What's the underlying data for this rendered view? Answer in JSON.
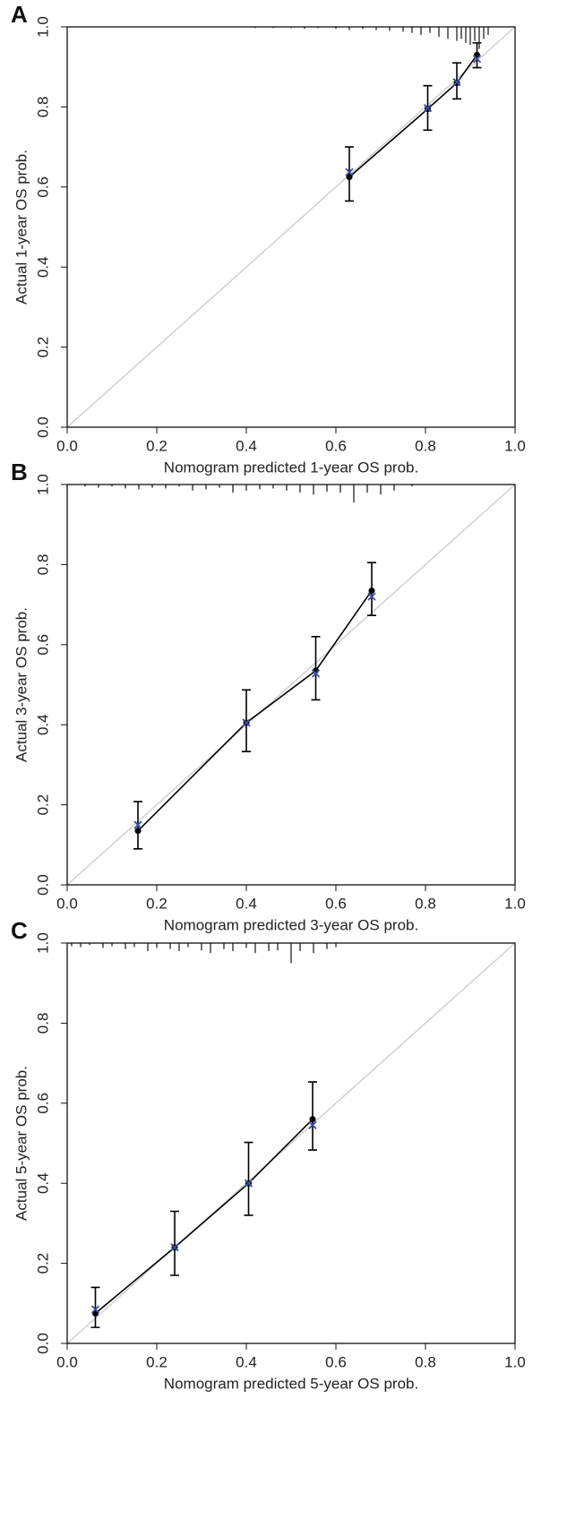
{
  "chart_data": [
    {
      "type": "calibration",
      "panel": "A",
      "x_label": "Nomogram  predicted 1-year OS  prob.",
      "y_label": "Actual 1-year OS  prob.",
      "xlim": [
        0,
        1
      ],
      "ylim": [
        0,
        1
      ],
      "xticks": [
        {
          "value": 0,
          "label": "0.0"
        },
        0.2,
        0.4,
        0.6,
        0.8,
        {
          "value": 1,
          "label": "1.0"
        }
      ],
      "yticks": [
        {
          "value": 0,
          "label": "0.0"
        },
        0.2,
        0.4,
        0.6,
        0.8,
        {
          "value": 1,
          "label": "1.0"
        }
      ],
      "observed": {
        "color": "#000000",
        "x": [
          0.63,
          0.805,
          0.87,
          0.915
        ],
        "values": [
          0.625,
          0.795,
          0.86,
          0.93
        ],
        "lower": [
          0.565,
          0.742,
          0.82,
          0.898
        ],
        "upper": [
          0.7,
          0.853,
          0.91,
          0.96
        ]
      },
      "corrected": {
        "color": "#3a4fa0",
        "x": [
          0.63,
          0.805,
          0.87,
          0.915
        ],
        "values": [
          0.637,
          0.797,
          0.862,
          0.92
        ]
      },
      "rug": {
        "x": [
          0.42,
          0.46,
          0.5,
          0.53,
          0.56,
          0.6,
          0.63,
          0.66,
          0.69,
          0.72,
          0.75,
          0.77,
          0.79,
          0.81,
          0.83,
          0.85,
          0.87,
          0.88,
          0.89,
          0.9,
          0.91,
          0.92,
          0.93,
          0.94
        ],
        "lengths": [
          0.003,
          0.003,
          0.003,
          0.005,
          0.003,
          0.005,
          0.008,
          0.005,
          0.008,
          0.01,
          0.012,
          0.015,
          0.02,
          0.015,
          0.025,
          0.03,
          0.035,
          0.03,
          0.04,
          0.045,
          0.035,
          0.055,
          0.03,
          0.02
        ]
      }
    },
    {
      "type": "calibration",
      "panel": "B",
      "x_label": "Nomogram  predicted 3-year OS  prob.",
      "y_label": "Actual 3-year OS  prob.",
      "xlim": [
        0,
        1
      ],
      "ylim": [
        0,
        1
      ],
      "xticks": [
        {
          "value": 0,
          "label": "0.0"
        },
        0.2,
        0.4,
        0.6,
        0.8,
        {
          "value": 1,
          "label": "1.0"
        }
      ],
      "yticks": [
        {
          "value": 0,
          "label": "0.0"
        },
        0.2,
        0.4,
        0.6,
        0.8,
        {
          "value": 1,
          "label": "1.0"
        }
      ],
      "observed": {
        "color": "#000000",
        "x": [
          0.158,
          0.4,
          0.555,
          0.68
        ],
        "values": [
          0.135,
          0.405,
          0.535,
          0.735
        ],
        "lower": [
          0.09,
          0.333,
          0.462,
          0.673
        ],
        "upper": [
          0.208,
          0.487,
          0.62,
          0.805
        ]
      },
      "corrected": {
        "color": "#3a4fa0",
        "x": [
          0.158,
          0.4,
          0.555,
          0.68
        ],
        "values": [
          0.15,
          0.405,
          0.528,
          0.72
        ]
      },
      "rug": {
        "x": [
          0.04,
          0.07,
          0.1,
          0.13,
          0.16,
          0.19,
          0.22,
          0.25,
          0.28,
          0.31,
          0.34,
          0.37,
          0.4,
          0.43,
          0.46,
          0.49,
          0.52,
          0.55,
          0.58,
          0.61,
          0.64,
          0.67,
          0.7,
          0.73,
          0.77
        ],
        "lengths": [
          0.005,
          0.008,
          0.005,
          0.01,
          0.012,
          0.008,
          0.01,
          0.005,
          0.015,
          0.012,
          0.008,
          0.02,
          0.015,
          0.012,
          0.01,
          0.015,
          0.02,
          0.025,
          0.018,
          0.02,
          0.045,
          0.02,
          0.025,
          0.015,
          0.005
        ]
      }
    },
    {
      "type": "calibration",
      "panel": "C",
      "x_label": "Nomogram  predicted 5-year OS  prob.",
      "y_label": "Actual 5-year OS  prob.",
      "xlim": [
        0,
        1
      ],
      "ylim": [
        0,
        1
      ],
      "xticks": [
        {
          "value": 0,
          "label": "0.0"
        },
        0.2,
        0.4,
        0.6,
        0.8,
        {
          "value": 1,
          "label": "1.0"
        }
      ],
      "yticks": [
        {
          "value": 0,
          "label": "0.0"
        },
        0.2,
        0.4,
        0.6,
        0.8,
        {
          "value": 1,
          "label": "1.0"
        }
      ],
      "observed": {
        "color": "#000000",
        "x": [
          0.063,
          0.24,
          0.405,
          0.548
        ],
        "values": [
          0.075,
          0.24,
          0.4,
          0.56
        ],
        "lower": [
          0.04,
          0.17,
          0.32,
          0.483
        ],
        "upper": [
          0.14,
          0.33,
          0.502,
          0.653
        ]
      },
      "corrected": {
        "color": "#3a4fa0",
        "x": [
          0.063,
          0.24,
          0.405,
          0.548
        ],
        "values": [
          0.085,
          0.24,
          0.4,
          0.545
        ]
      },
      "rug": {
        "x": [
          0.01,
          0.03,
          0.05,
          0.08,
          0.1,
          0.13,
          0.15,
          0.18,
          0.2,
          0.23,
          0.25,
          0.27,
          0.3,
          0.32,
          0.35,
          0.37,
          0.4,
          0.42,
          0.45,
          0.47,
          0.5,
          0.52,
          0.55,
          0.58,
          0.6
        ],
        "lengths": [
          0.008,
          0.01,
          0.005,
          0.012,
          0.008,
          0.015,
          0.01,
          0.02,
          0.012,
          0.015,
          0.02,
          0.01,
          0.018,
          0.025,
          0.015,
          0.02,
          0.012,
          0.025,
          0.02,
          0.018,
          0.05,
          0.02,
          0.025,
          0.015,
          0.01
        ]
      }
    }
  ]
}
